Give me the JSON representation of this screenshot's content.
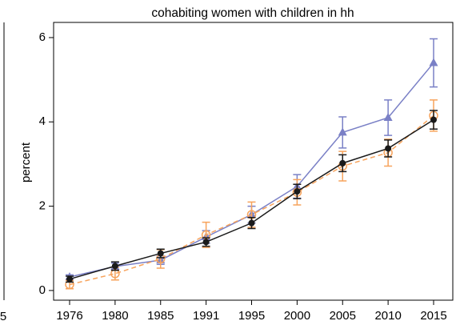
{
  "chart_data": {
    "type": "line",
    "title": "cohabiting women with children in hh",
    "y_label": "percent",
    "left_panel_tick": "5",
    "categories": [
      "1976",
      "1980",
      "1985",
      "1991",
      "1995",
      "2000",
      "2005",
      "2010",
      "2015"
    ],
    "ylim": [
      -0.23,
      6.36
    ],
    "yticks": [
      0,
      2,
      4,
      6
    ],
    "series": [
      {
        "color": "#7a80c6",
        "marker": "triangle",
        "dashed": false,
        "values": [
          0.32,
          0.57,
          0.72,
          1.27,
          1.8,
          2.47,
          3.75,
          4.1,
          5.4
        ],
        "errors": [
          0.05,
          0.08,
          0.1,
          0.15,
          0.2,
          0.28,
          0.37,
          0.42,
          0.57
        ]
      },
      {
        "color": "#f7a35c",
        "marker": "hollow-circle",
        "dashed": true,
        "values": [
          0.14,
          0.4,
          0.75,
          1.32,
          1.8,
          2.33,
          2.95,
          3.27,
          4.15
        ],
        "errors": [
          0.1,
          0.15,
          0.22,
          0.3,
          0.3,
          0.3,
          0.35,
          0.32,
          0.37
        ]
      },
      {
        "color": "#1a1a1a",
        "marker": "circle",
        "dashed": false,
        "values": [
          0.27,
          0.58,
          0.88,
          1.15,
          1.6,
          2.35,
          3.02,
          3.37,
          4.05
        ],
        "errors": [
          0.07,
          0.1,
          0.1,
          0.1,
          0.13,
          0.17,
          0.2,
          0.2,
          0.22
        ]
      }
    ]
  }
}
